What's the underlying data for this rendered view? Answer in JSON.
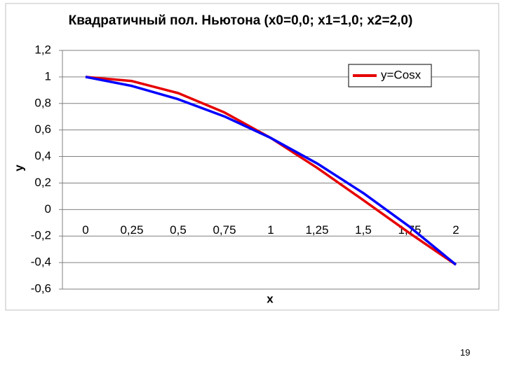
{
  "chart_data": {
    "type": "line",
    "title": "Квадратичный пол. Ньютона (x0=0,0; x1=1,0; x2=2,0)",
    "xlabel": "x",
    "ylabel": "y",
    "categories": [
      "0",
      "0,25",
      "0,5",
      "0,75",
      "1",
      "1,25",
      "1,5",
      "1,75",
      "2"
    ],
    "series": [
      {
        "name": "y=Cosx",
        "color": "#e60000",
        "values": [
          1,
          0.969,
          0.878,
          0.732,
          0.54,
          0.315,
          0.071,
          -0.178,
          -0.416
        ]
      },
      {
        "color": "#0000ff",
        "values": [
          1,
          0.932,
          0.832,
          0.702,
          0.54,
          0.348,
          0.124,
          -0.13,
          -0.416
        ]
      }
    ],
    "ylim": [
      -0.6,
      1.2
    ],
    "yticks": [
      {
        "value": -0.6,
        "label": "-0,6"
      },
      {
        "value": -0.4,
        "label": "-0,4"
      },
      {
        "value": -0.2,
        "label": "-0,2"
      },
      0,
      {
        "value": 0.2,
        "label": "0,2"
      },
      {
        "value": 0.4,
        "label": "0,4"
      },
      {
        "value": 0.6,
        "label": "0,6"
      },
      {
        "value": 0.8,
        "label": "0,8"
      },
      1,
      {
        "value": 1.2,
        "label": "1,2"
      }
    ],
    "grid": true,
    "legend": "upper-right"
  },
  "page_number": "19"
}
